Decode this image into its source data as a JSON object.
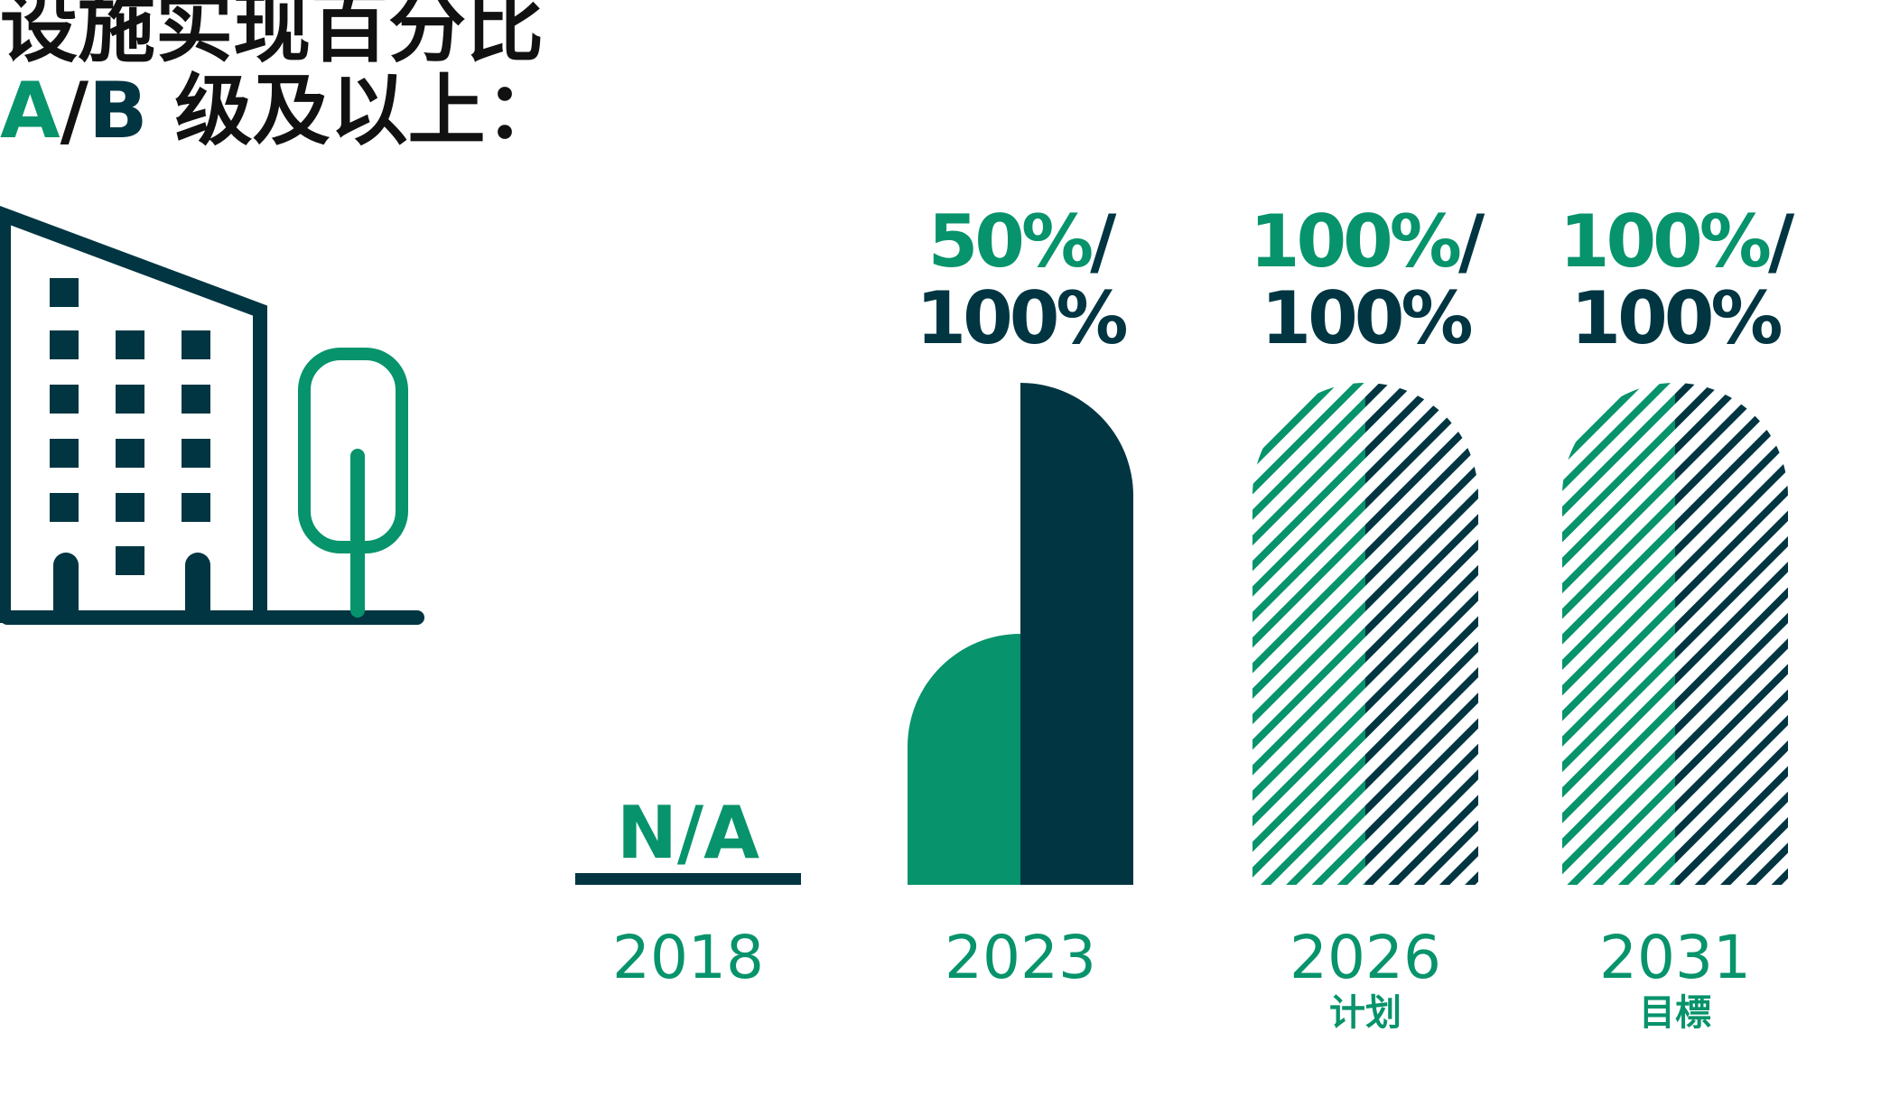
{
  "title": {
    "line1": "设施实现百分比",
    "grade_a": "A",
    "slash": "/",
    "grade_b": "B",
    "line2_rest": " 级及以上："
  },
  "colors": {
    "green": "#07936B",
    "navy": "#013542",
    "title": "#111111"
  },
  "icons": [
    "building-icon",
    "tree-icon"
  ],
  "chart_data": {
    "type": "bar",
    "categories": [
      "2018",
      "2023",
      "2026",
      "2031"
    ],
    "category_sublabels": [
      "",
      "",
      "计划",
      "目標"
    ],
    "series": [
      {
        "name": "A",
        "values": [
          null,
          50,
          100,
          100
        ],
        "color": "#07936B"
      },
      {
        "name": "B",
        "values": [
          null,
          100,
          100,
          100
        ],
        "color": "#013542"
      }
    ],
    "value_labels": [
      {
        "a": "N/A",
        "b": ""
      },
      {
        "a": "50%",
        "b": "100%"
      },
      {
        "a": "100%",
        "b": "100%"
      },
      {
        "a": "100%",
        "b": "100%"
      }
    ],
    "bar_style": [
      "none",
      "solid",
      "hatched",
      "hatched"
    ],
    "ylim": [
      0,
      100
    ],
    "unit": "%",
    "grid": false,
    "legend": "none"
  }
}
